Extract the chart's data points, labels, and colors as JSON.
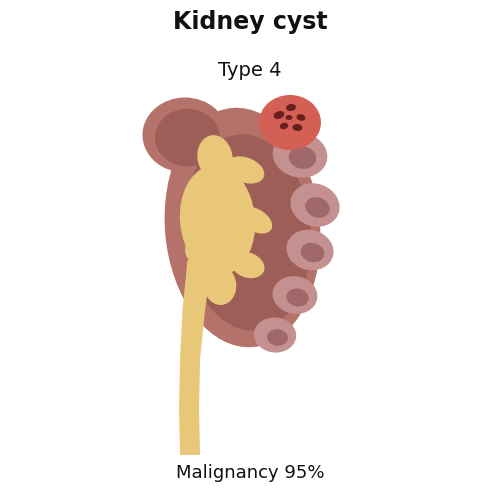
{
  "title": "Kidney cyst",
  "subtitle": "Type 4",
  "footer": "Malignancy 95%",
  "title_fontsize": 17,
  "subtitle_fontsize": 14,
  "footer_fontsize": 13,
  "background_color": "#ffffff",
  "kidney_outer_color": "#b5726a",
  "kidney_inner_color": "#9e5e58",
  "renal_pelvis_color": "#e8c878",
  "calyx_color": "#c49090",
  "calyx_dark_color": "#a06868",
  "cyst_outer_color": "#d46055",
  "cyst_inner_color": "#6a1f1f",
  "ureter_color": "#e8c878"
}
